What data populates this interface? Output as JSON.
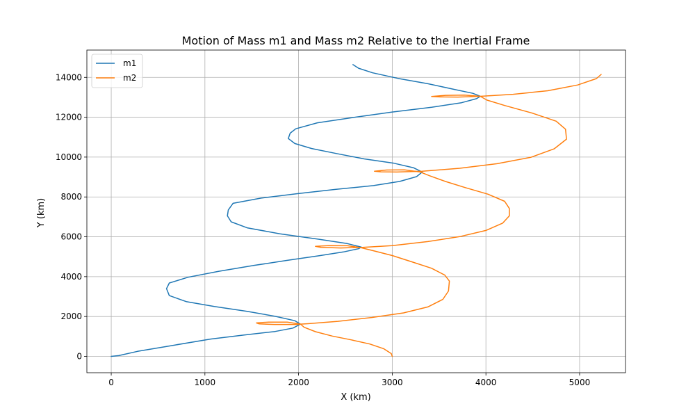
{
  "chart_data": {
    "type": "line",
    "title": "Motion of Mass m1 and Mass m2 Relative to the Inertial Frame",
    "xlabel": "X (km)",
    "ylabel": "Y (km)",
    "xlim": [
      -260,
      5490
    ],
    "ylim": [
      -820,
      15370
    ],
    "xticks": [
      0,
      1000,
      2000,
      3000,
      4000,
      5000
    ],
    "yticks": [
      0,
      2000,
      4000,
      6000,
      8000,
      10000,
      12000,
      14000
    ],
    "grid": true,
    "legend": "top-left",
    "series": [
      {
        "name": "m1",
        "color": "#1f77b4",
        "points": [
          [
            0,
            0
          ],
          [
            80,
            40
          ],
          [
            280,
            250
          ],
          [
            680,
            570
          ],
          [
            1060,
            870
          ],
          [
            1420,
            1070
          ],
          [
            1750,
            1250
          ],
          [
            1940,
            1420
          ],
          [
            2020,
            1620
          ],
          [
            1960,
            1790
          ],
          [
            1750,
            2010
          ],
          [
            1450,
            2260
          ],
          [
            1100,
            2500
          ],
          [
            800,
            2750
          ],
          [
            620,
            3050
          ],
          [
            590,
            3400
          ],
          [
            620,
            3680
          ],
          [
            820,
            3970
          ],
          [
            1150,
            4270
          ],
          [
            1520,
            4560
          ],
          [
            1880,
            4820
          ],
          [
            2220,
            5050
          ],
          [
            2480,
            5240
          ],
          [
            2640,
            5400
          ],
          [
            2670,
            5480
          ],
          [
            2520,
            5660
          ],
          [
            2200,
            5890
          ],
          [
            1800,
            6150
          ],
          [
            1450,
            6450
          ],
          [
            1280,
            6750
          ],
          [
            1240,
            7050
          ],
          [
            1250,
            7350
          ],
          [
            1300,
            7680
          ],
          [
            1600,
            7940
          ],
          [
            1980,
            8160
          ],
          [
            2400,
            8380
          ],
          [
            2800,
            8570
          ],
          [
            3080,
            8780
          ],
          [
            3260,
            9020
          ],
          [
            3320,
            9250
          ],
          [
            3230,
            9460
          ],
          [
            3020,
            9690
          ],
          [
            2700,
            9910
          ],
          [
            2400,
            10180
          ],
          [
            2140,
            10430
          ],
          [
            1960,
            10680
          ],
          [
            1890,
            10930
          ],
          [
            1910,
            11200
          ],
          [
            1970,
            11420
          ],
          [
            2200,
            11720
          ],
          [
            2600,
            12000
          ],
          [
            3000,
            12260
          ],
          [
            3420,
            12500
          ],
          [
            3740,
            12730
          ],
          [
            3900,
            12930
          ],
          [
            3940,
            13050
          ],
          [
            3860,
            13200
          ],
          [
            3660,
            13400
          ],
          [
            3380,
            13680
          ],
          [
            3060,
            13950
          ],
          [
            2790,
            14230
          ],
          [
            2640,
            14460
          ],
          [
            2580,
            14640
          ]
        ]
      },
      {
        "name": "m2",
        "color": "#ff7f0e",
        "points": [
          [
            3000,
            0
          ],
          [
            2990,
            140
          ],
          [
            2910,
            380
          ],
          [
            2760,
            620
          ],
          [
            2560,
            830
          ],
          [
            2360,
            1020
          ],
          [
            2180,
            1240
          ],
          [
            2060,
            1460
          ],
          [
            2020,
            1620
          ],
          [
            1880,
            1720
          ],
          [
            1680,
            1720
          ],
          [
            1550,
            1680
          ],
          [
            1580,
            1630
          ],
          [
            1740,
            1600
          ],
          [
            1960,
            1600
          ],
          [
            2100,
            1640
          ],
          [
            2420,
            1760
          ],
          [
            2780,
            1950
          ],
          [
            3120,
            2180
          ],
          [
            3380,
            2480
          ],
          [
            3540,
            2860
          ],
          [
            3600,
            3280
          ],
          [
            3610,
            3780
          ],
          [
            3560,
            4080
          ],
          [
            3420,
            4420
          ],
          [
            3200,
            4760
          ],
          [
            3000,
            5060
          ],
          [
            2800,
            5300
          ],
          [
            2660,
            5460
          ],
          [
            2520,
            5550
          ],
          [
            2320,
            5560
          ],
          [
            2180,
            5520
          ],
          [
            2240,
            5470
          ],
          [
            2450,
            5440
          ],
          [
            2680,
            5470
          ],
          [
            3000,
            5560
          ],
          [
            3380,
            5760
          ],
          [
            3720,
            6010
          ],
          [
            4000,
            6320
          ],
          [
            4180,
            6690
          ],
          [
            4250,
            7050
          ],
          [
            4250,
            7420
          ],
          [
            4200,
            7780
          ],
          [
            4020,
            8140
          ],
          [
            3780,
            8470
          ],
          [
            3560,
            8790
          ],
          [
            3400,
            9060
          ],
          [
            3300,
            9250
          ],
          [
            3130,
            9360
          ],
          [
            2940,
            9350
          ],
          [
            2810,
            9290
          ],
          [
            2880,
            9260
          ],
          [
            3050,
            9250
          ],
          [
            3320,
            9290
          ],
          [
            3720,
            9440
          ],
          [
            4120,
            9670
          ],
          [
            4480,
            9990
          ],
          [
            4730,
            10420
          ],
          [
            4860,
            10900
          ],
          [
            4850,
            11400
          ],
          [
            4750,
            11800
          ],
          [
            4500,
            12200
          ],
          [
            4200,
            12590
          ],
          [
            4010,
            12860
          ],
          [
            3940,
            13050
          ],
          [
            3770,
            13110
          ],
          [
            3570,
            13100
          ],
          [
            3420,
            13040
          ],
          [
            3510,
            13020
          ],
          [
            3700,
            13010
          ],
          [
            3940,
            13050
          ],
          [
            4290,
            13150
          ],
          [
            4660,
            13330
          ],
          [
            4980,
            13620
          ],
          [
            5180,
            13940
          ],
          [
            5230,
            14150
          ]
        ]
      }
    ]
  }
}
